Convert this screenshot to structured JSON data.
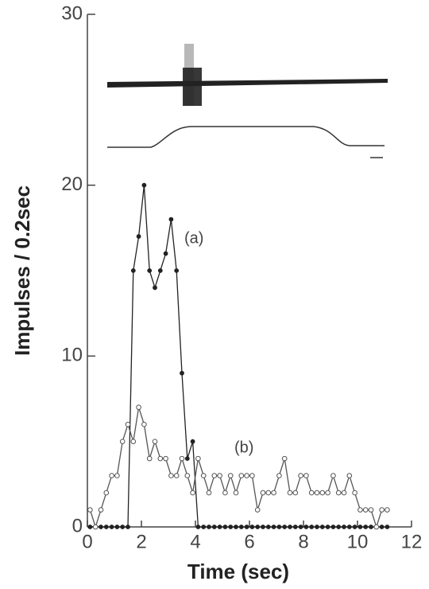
{
  "chart_data": {
    "type": "line",
    "x_label": "Time (sec)",
    "y_label": "Impulses / 0.2sec",
    "annotations": [
      "(a)",
      "(b)"
    ],
    "x": [
      0.1,
      0.3,
      0.5,
      0.7,
      0.9,
      1.1,
      1.3,
      1.5,
      1.7,
      1.9,
      2.1,
      2.3,
      2.5,
      2.7,
      2.9,
      3.1,
      3.3,
      3.5,
      3.7,
      3.9,
      4.1,
      4.3,
      4.5,
      4.7,
      4.9,
      5.1,
      5.3,
      5.5,
      5.7,
      5.9,
      6.1,
      6.3,
      6.5,
      6.7,
      6.9,
      7.1,
      7.3,
      7.5,
      7.7,
      7.9,
      8.1,
      8.3,
      8.5,
      8.7,
      8.9,
      9.1,
      9.3,
      9.5,
      9.7,
      9.9,
      10.1,
      10.3,
      10.5,
      10.7,
      10.9,
      11.1
    ],
    "series": [
      {
        "name": "(a)",
        "color": "#222222",
        "marker": "filled",
        "values": [
          0,
          0,
          0,
          0,
          0,
          0,
          0,
          0,
          15,
          17,
          20,
          15,
          14,
          15,
          16,
          18,
          15,
          9,
          4,
          5,
          0,
          0,
          0,
          0,
          0,
          0,
          0,
          0,
          0,
          0,
          0,
          0,
          0,
          0,
          0,
          0,
          0,
          0,
          0,
          0,
          0,
          0,
          0,
          0,
          0,
          0,
          0,
          0,
          0,
          0,
          0,
          0,
          0,
          0,
          0,
          0
        ]
      },
      {
        "name": "(b)",
        "color": "#555555",
        "marker": "open",
        "values": [
          1,
          0,
          1,
          2,
          3,
          3,
          5,
          6,
          5,
          7,
          6,
          4,
          5,
          4,
          4,
          3,
          3,
          4,
          3,
          2,
          4,
          3,
          2,
          3,
          3,
          2,
          3,
          2,
          3,
          3,
          3,
          1,
          2,
          2,
          2,
          3,
          4,
          2,
          2,
          3,
          3,
          2,
          2,
          2,
          2,
          3,
          2,
          2,
          3,
          2,
          1,
          1,
          1,
          0,
          1,
          1
        ]
      }
    ],
    "xlim": [
      0,
      12
    ],
    "xticks": [
      0,
      2,
      4,
      6,
      8,
      10,
      12
    ],
    "ylim": [
      0,
      30
    ],
    "yticks": [
      0,
      10,
      20,
      30
    ]
  }
}
